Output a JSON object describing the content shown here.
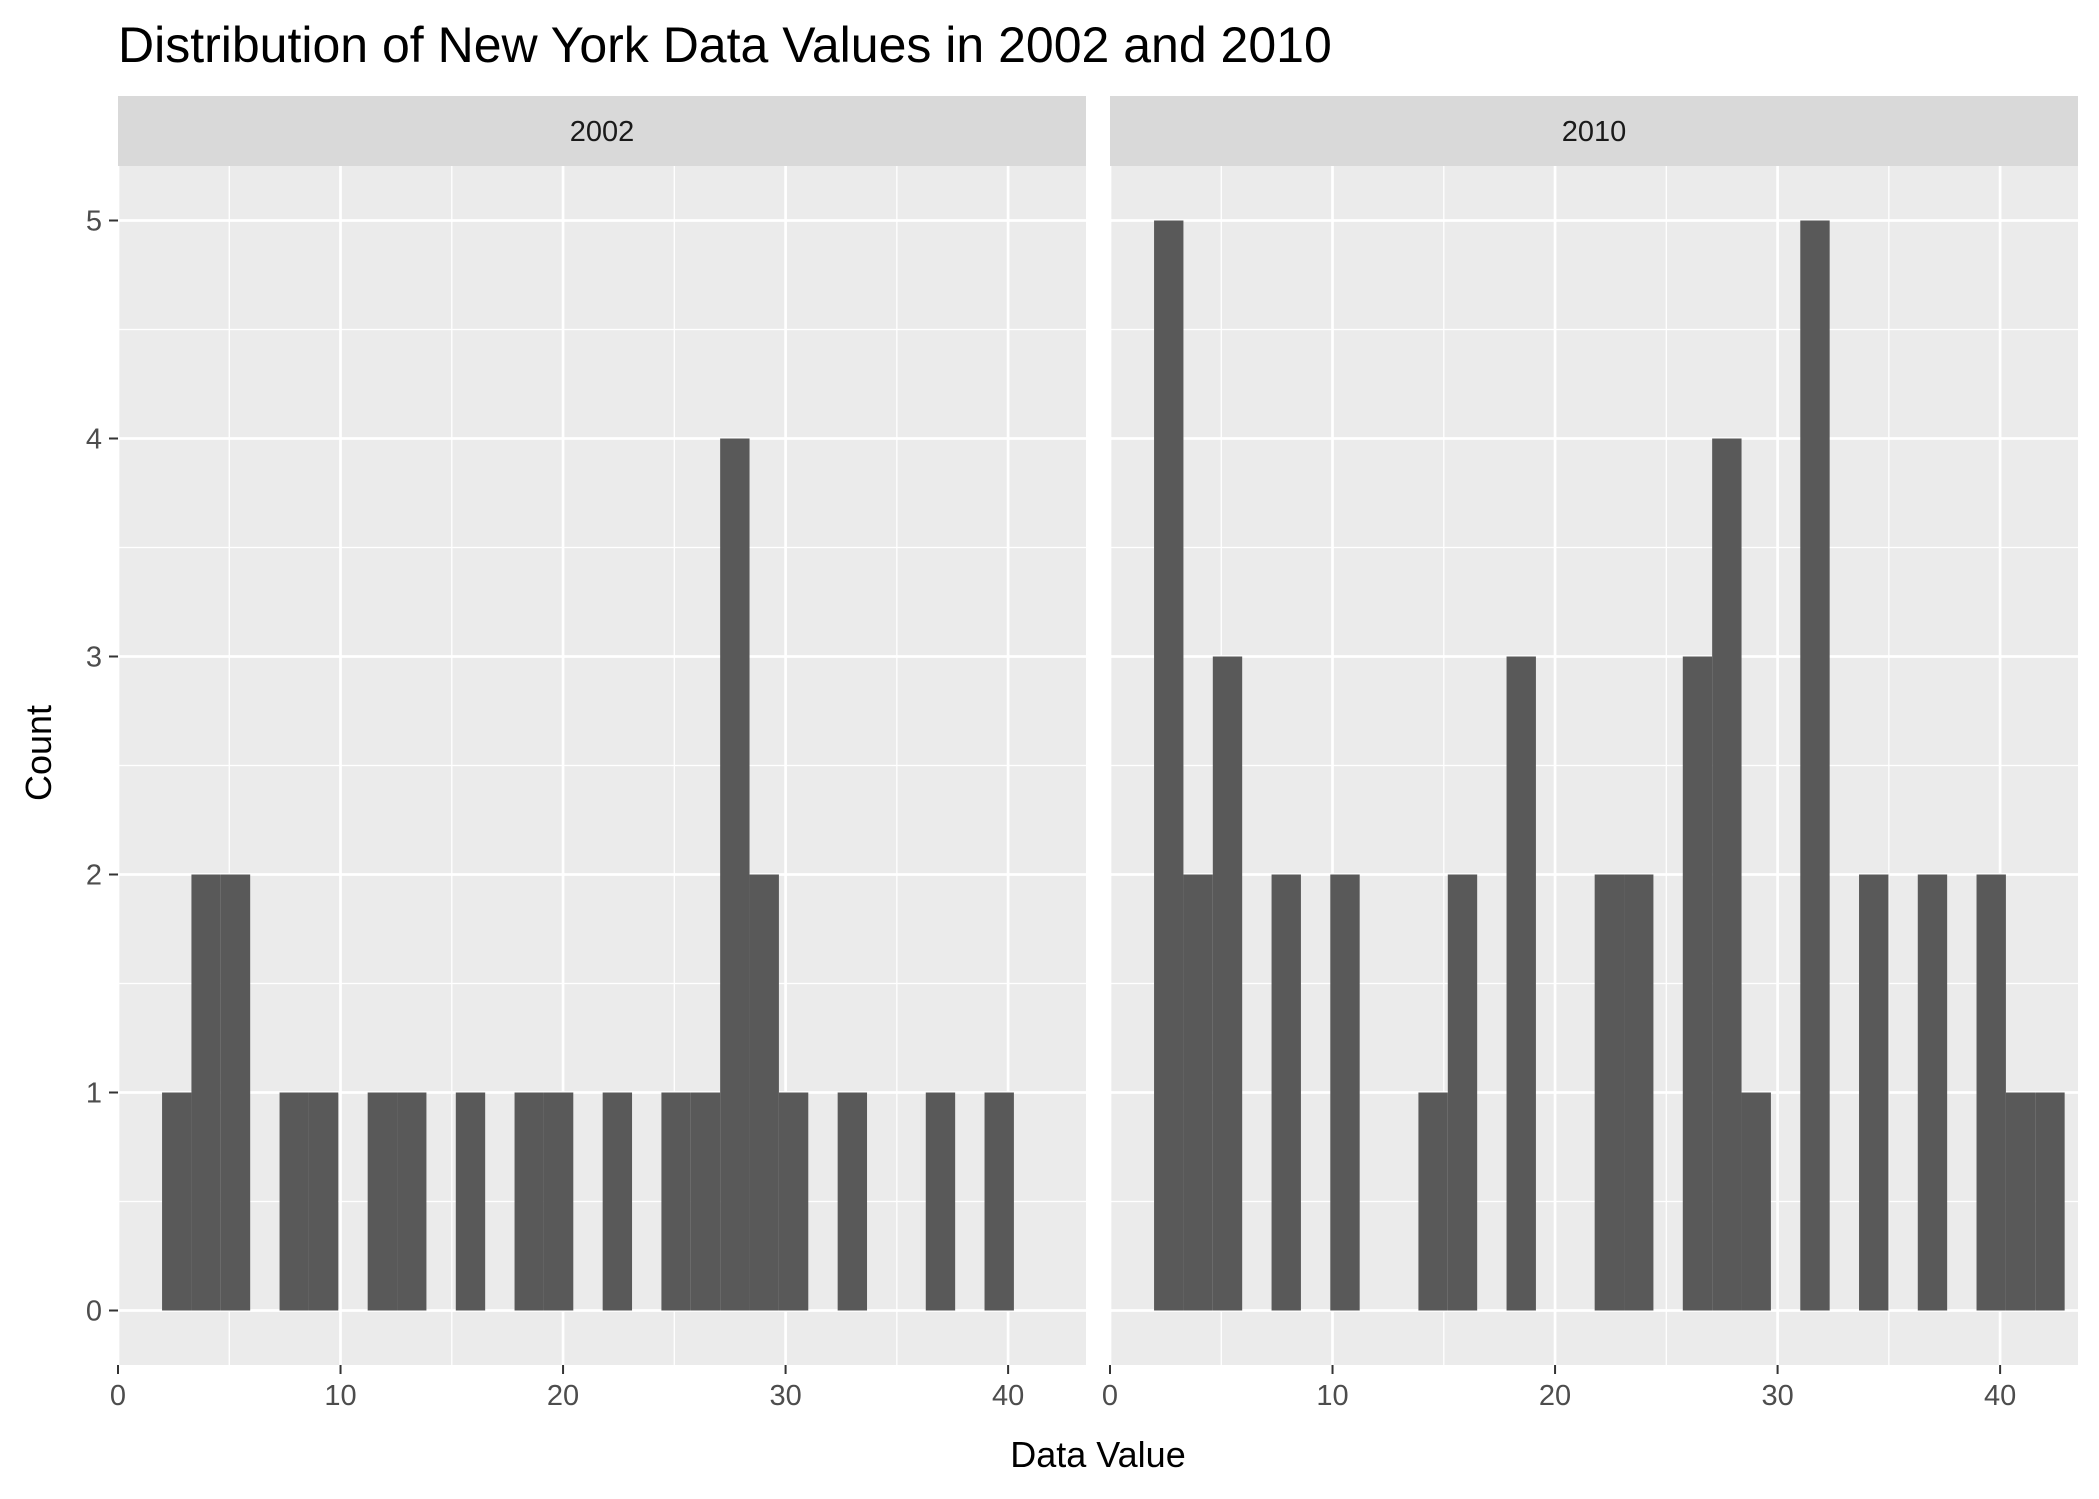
{
  "chart_data": {
    "type": "bar",
    "title": "Distribution of New York Data Values in 2002 and 2010",
    "xlabel": "Data Value",
    "ylabel": "Count",
    "xlim": [
      0,
      43.5
    ],
    "ylim": [
      -0.25,
      5.25
    ],
    "xticks": [
      0,
      10,
      20,
      30,
      40
    ],
    "yticks": [
      0,
      1,
      2,
      3,
      4,
      5
    ],
    "grid": true,
    "legend": "none",
    "colors": {
      "panel_bg": "#ebebeb",
      "strip_bg": "#d9d9d9",
      "grid": "#ffffff",
      "bar": "#595959",
      "tick": "#333333"
    },
    "bin_width": 1.32,
    "bin_start": 1.98,
    "panels": [
      {
        "name": "2002",
        "counts": [
          1,
          2,
          2,
          0,
          1,
          1,
          0,
          1,
          1,
          0,
          1,
          0,
          1,
          1,
          0,
          1,
          0,
          1,
          1,
          4,
          2,
          1,
          0,
          1,
          0,
          0,
          1,
          0,
          1,
          0,
          0,
          0
        ]
      },
      {
        "name": "2010",
        "counts": [
          5,
          2,
          3,
          0,
          2,
          0,
          2,
          0,
          0,
          1,
          2,
          0,
          3,
          0,
          0,
          2,
          2,
          0,
          3,
          4,
          1,
          0,
          5,
          0,
          2,
          0,
          2,
          0,
          2,
          1,
          1,
          0
        ]
      }
    ]
  }
}
